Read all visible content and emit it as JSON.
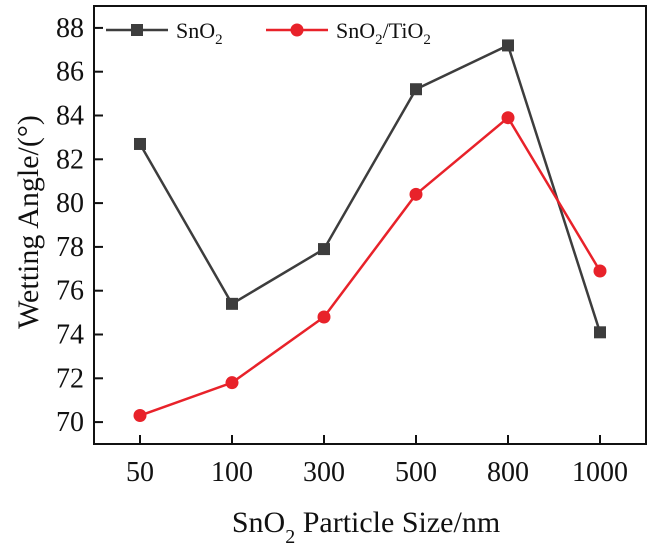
{
  "chart_data": {
    "type": "line",
    "categories": [
      "50",
      "100",
      "300",
      "500",
      "800",
      "1000"
    ],
    "series": [
      {
        "name": "SnO2",
        "name_main": "SnO",
        "name_sub": "2",
        "name_tail": "",
        "name_sub2": "",
        "name_tail2": "",
        "color": "#3d3d3d",
        "marker": "square",
        "values": [
          82.7,
          75.4,
          77.9,
          85.2,
          87.2,
          74.1
        ]
      },
      {
        "name": "SnO2/TiO2",
        "name_main": "SnO",
        "name_sub": "2",
        "name_tail": "/TiO",
        "name_sub2": "2",
        "name_tail2": "",
        "color": "#e8222a",
        "marker": "circle",
        "values": [
          70.3,
          71.8,
          74.8,
          80.4,
          83.9,
          76.9
        ]
      }
    ],
    "ylim": [
      69,
      89
    ],
    "yticks": [
      70,
      72,
      74,
      76,
      78,
      80,
      82,
      84,
      86,
      88
    ],
    "ylabel": "Wetting Angle/(°)",
    "xlabel": {
      "main": "SnO",
      "sub": "2",
      "rest": " Particle Size/nm"
    },
    "legend_position": "top-left"
  }
}
